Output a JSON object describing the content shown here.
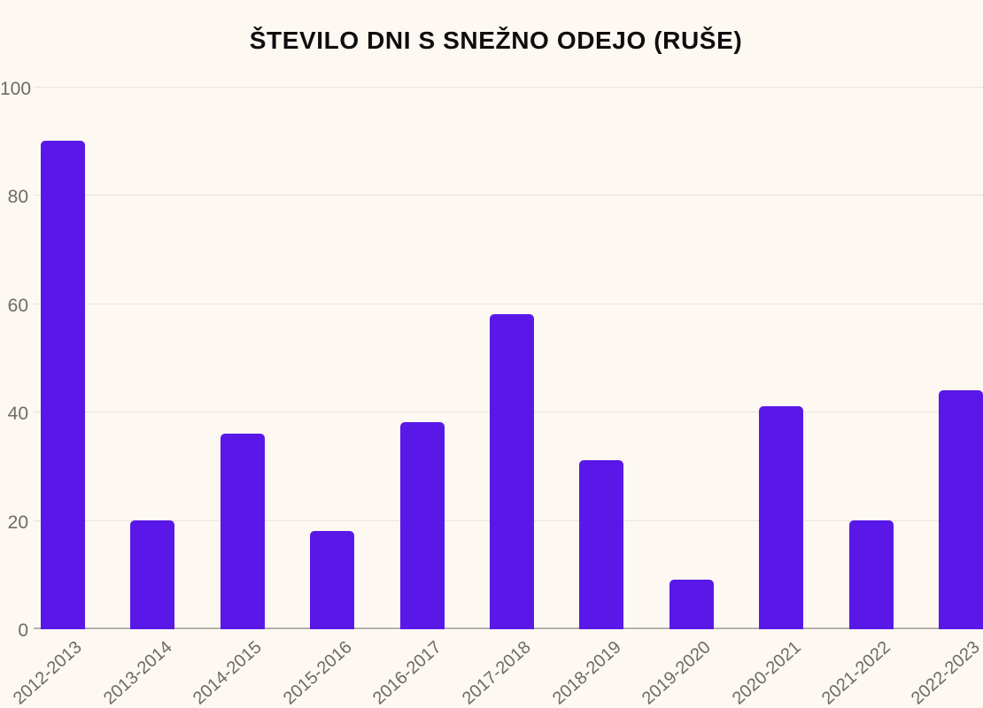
{
  "chart_data": {
    "type": "bar",
    "title": "ŠTEVILO DNI S SNEŽNO ODEJO (RUŠE)",
    "categories": [
      "2012-2013",
      "2013-2014",
      "2014-2015",
      "2015-2016",
      "2016-2017",
      "2017-2018",
      "2018-2019",
      "2019-2020",
      "2020-2021",
      "2021-2022",
      "2022-2023"
    ],
    "values": [
      90,
      20,
      36,
      18,
      38,
      58,
      31,
      9,
      41,
      20,
      44
    ],
    "xlabel": "",
    "ylabel": "",
    "ylim": [
      0,
      100
    ],
    "y_ticks": [
      0,
      20,
      40,
      60,
      80,
      100
    ],
    "grid": true,
    "legend": "none",
    "colors": {
      "bar": "#5a18e8",
      "background": "#fdf8f2",
      "gridline": "#e8e3dc",
      "axis_line": "#b6b2ac",
      "tick_text": "#6e6a66",
      "title_text": "#0e0e0e"
    }
  }
}
